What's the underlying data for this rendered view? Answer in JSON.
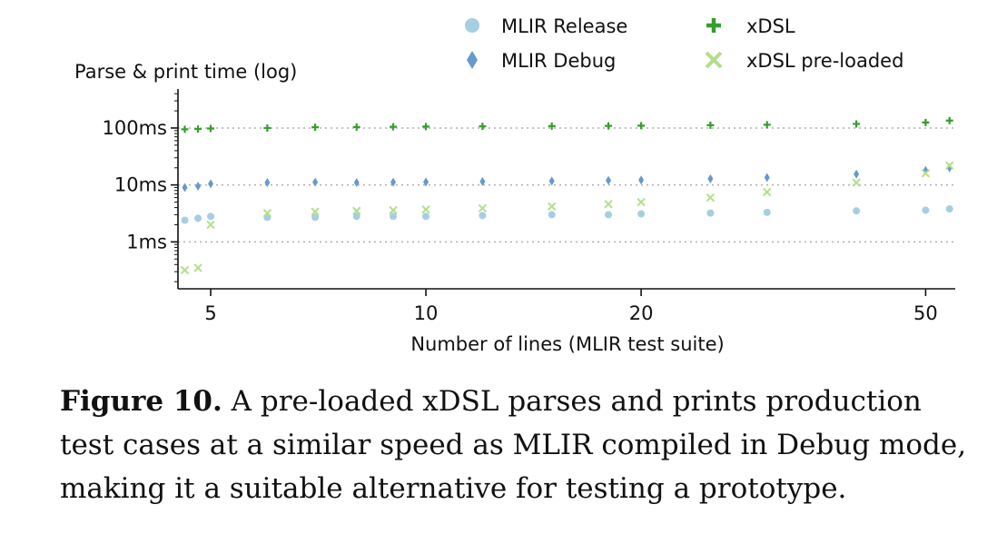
{
  "chart_data": {
    "type": "scatter",
    "ylabel": "Parse & print time (log)",
    "xlabel": "Number of lines (MLIR test suite)",
    "x_scale": "log",
    "y_scale": "log",
    "x_ticks": [
      {
        "value": 5,
        "label": "5"
      },
      {
        "value": 10,
        "label": "10"
      },
      {
        "value": 20,
        "label": "20"
      },
      {
        "value": 50,
        "label": "50"
      }
    ],
    "y_ticks": [
      {
        "value": 1,
        "label": "1ms"
      },
      {
        "value": 10,
        "label": "10ms"
      },
      {
        "value": 100,
        "label": "100ms"
      }
    ],
    "xlim": [
      4.5,
      55
    ],
    "ylim_ms": [
      0.15,
      450
    ],
    "grid": "horizontal dotted at y ticks",
    "legend": "top",
    "series": [
      {
        "name": "MLIR Release",
        "marker": "circle",
        "color": "#a6cee3",
        "points": [
          [
            4.6,
            2.4
          ],
          [
            4.8,
            2.6
          ],
          [
            5,
            2.8
          ],
          [
            6,
            2.7
          ],
          [
            7,
            2.7
          ],
          [
            8,
            2.8
          ],
          [
            9,
            2.8
          ],
          [
            10,
            2.8
          ],
          [
            12,
            2.9
          ],
          [
            15,
            3.0
          ],
          [
            18,
            3.0
          ],
          [
            20,
            3.1
          ],
          [
            25,
            3.2
          ],
          [
            30,
            3.3
          ],
          [
            40,
            3.5
          ],
          [
            50,
            3.6
          ],
          [
            54,
            3.8
          ]
        ]
      },
      {
        "name": "MLIR Debug",
        "marker": "diamond",
        "color": "#6699cc",
        "points": [
          [
            4.6,
            9.0
          ],
          [
            4.8,
            9.5
          ],
          [
            5,
            10.5
          ],
          [
            6,
            11.0
          ],
          [
            7,
            11.2
          ],
          [
            8,
            11.0
          ],
          [
            9,
            11.2
          ],
          [
            10,
            11.3
          ],
          [
            12,
            11.5
          ],
          [
            15,
            11.7
          ],
          [
            18,
            12.0
          ],
          [
            20,
            12.2
          ],
          [
            25,
            12.8
          ],
          [
            30,
            13.5
          ],
          [
            40,
            15.5
          ],
          [
            50,
            18.0
          ],
          [
            54,
            20.0
          ]
        ]
      },
      {
        "name": "xDSL",
        "marker": "plus",
        "color": "#33a02c",
        "points": [
          [
            4.6,
            95
          ],
          [
            4.8,
            96
          ],
          [
            5,
            98
          ],
          [
            6,
            100
          ],
          [
            7,
            103
          ],
          [
            8,
            104
          ],
          [
            9,
            105
          ],
          [
            10,
            106
          ],
          [
            12,
            107
          ],
          [
            15,
            108
          ],
          [
            18,
            109
          ],
          [
            20,
            110
          ],
          [
            25,
            112
          ],
          [
            30,
            114
          ],
          [
            40,
            118
          ],
          [
            50,
            125
          ],
          [
            54,
            135
          ]
        ]
      },
      {
        "name": "xDSL pre-loaded",
        "marker": "x",
        "color": "#b2df8a",
        "points": [
          [
            4.6,
            0.32
          ],
          [
            4.8,
            0.35
          ],
          [
            5,
            2.0
          ],
          [
            6,
            3.2
          ],
          [
            7,
            3.4
          ],
          [
            8,
            3.5
          ],
          [
            9,
            3.6
          ],
          [
            10,
            3.7
          ],
          [
            12,
            3.9
          ],
          [
            15,
            4.2
          ],
          [
            18,
            4.6
          ],
          [
            20,
            5.0
          ],
          [
            25,
            6.0
          ],
          [
            30,
            7.5
          ],
          [
            40,
            11.0
          ],
          [
            50,
            16.0
          ],
          [
            54,
            22.0
          ]
        ]
      }
    ]
  },
  "caption": {
    "label": "Figure 10.",
    "text": " A pre-loaded xDSL parses and prints production test cases at a similar speed as MLIR compiled in Debug mode, making it a suitable alternative for testing a prototype."
  }
}
